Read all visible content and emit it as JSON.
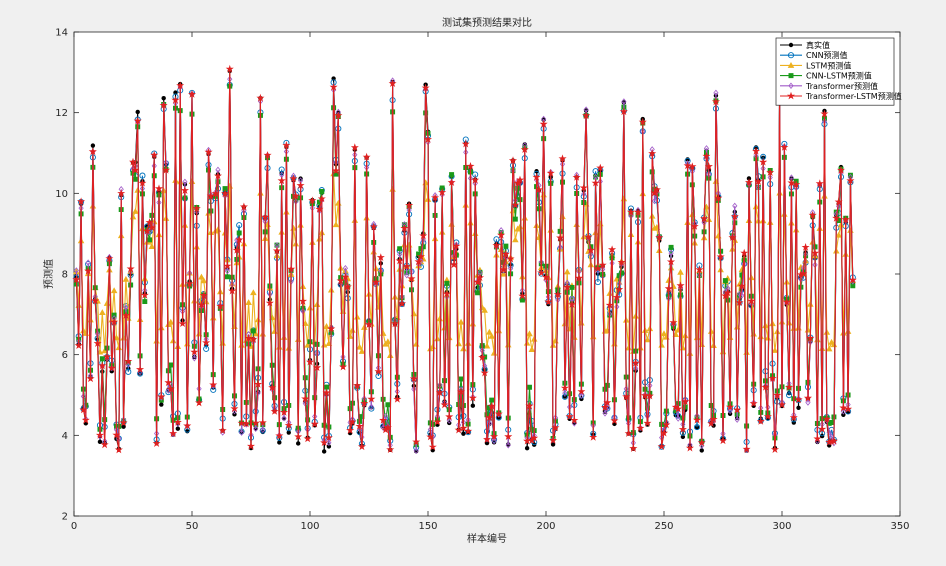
{
  "chart_data": {
    "type": "line",
    "title": "测试集预测结果对比",
    "xlabel": "样本编号",
    "ylabel": "预测值",
    "xlim": [
      0,
      350
    ],
    "ylim": [
      2,
      14
    ],
    "xticks": [
      0,
      50,
      100,
      150,
      200,
      250,
      300,
      350
    ],
    "yticks": [
      2,
      4,
      6,
      8,
      10,
      12,
      14
    ],
    "grid": false,
    "legend_position": "top-right",
    "n_samples": 330,
    "series": [
      {
        "name": "真实值",
        "color": "#000000",
        "marker": "dot",
        "amplitude": 1.0,
        "seed": 0,
        "noise": 0.0
      },
      {
        "name": "CNN预测值",
        "color": "#0072BD",
        "marker": "circle-open",
        "amplitude": 0.95,
        "seed": 11,
        "noise": 0.25
      },
      {
        "name": "LSTM预测值",
        "color": "#EDB120",
        "marker": "triangle",
        "amplitude": 0.45,
        "seed": 23,
        "noise": 0.2
      },
      {
        "name": "CNN-LSTM预测值",
        "color": "#1A9A1A",
        "marker": "square",
        "amplitude": 0.9,
        "seed": 37,
        "noise": 0.3
      },
      {
        "name": "Transformer预测值",
        "color": "#A05AC8",
        "marker": "diamond",
        "amplitude": 0.97,
        "seed": 51,
        "noise": 0.2
      },
      {
        "name": "Transformer-LSTM预测值",
        "color": "#E02020",
        "marker": "star",
        "amplitude": 0.98,
        "seed": 67,
        "noise": 0.15
      }
    ]
  }
}
